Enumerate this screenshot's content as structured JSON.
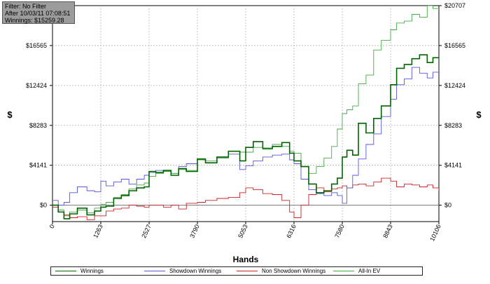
{
  "info": {
    "filter": "Filter: No Filter",
    "after": "After 10/03/11 07:08:51",
    "winnings": "Winnings: $15259.28"
  },
  "chart_data": {
    "type": "line",
    "xlabel": "Hands",
    "ylabel": "$",
    "x_ticks": [
      "0",
      "1263",
      "2527",
      "3790",
      "5053",
      "6316",
      "7580",
      "8843",
      "10106"
    ],
    "y_ticks": [
      "$0",
      "$4141",
      "$8283",
      "$12424",
      "$16565",
      "$20707"
    ],
    "xlim": [
      0,
      10106
    ],
    "ylim": [
      -1700,
      20707
    ],
    "grid": true,
    "legend_position": "bottom",
    "series": [
      {
        "name": "Winnings",
        "color": "#006400",
        "x": [
          0,
          150,
          300,
          450,
          650,
          900,
          1100,
          1263,
          1400,
          1600,
          1800,
          2000,
          2200,
          2400,
          2527,
          2700,
          2900,
          3100,
          3300,
          3500,
          3790,
          4000,
          4300,
          4600,
          4900,
          5053,
          5250,
          5500,
          5750,
          6000,
          6200,
          6316,
          6500,
          6700,
          6900,
          7100,
          7300,
          7450,
          7580,
          7700,
          7850,
          8000,
          8200,
          8400,
          8600,
          8843,
          9000,
          9200,
          9400,
          9600,
          9800,
          9950,
          10106
        ],
        "values": [
          0,
          -700,
          -1400,
          -900,
          -300,
          -1000,
          -600,
          -200,
          -100,
          700,
          1000,
          1500,
          1800,
          1900,
          3500,
          3400,
          3600,
          3100,
          3800,
          3500,
          4800,
          4400,
          5000,
          5600,
          4600,
          6000,
          6600,
          5900,
          6100,
          6500,
          5400,
          4600,
          4000,
          2200,
          1300,
          1500,
          2200,
          2800,
          5000,
          5700,
          5200,
          8500,
          7500,
          9000,
          10300,
          12500,
          14200,
          14600,
          15200,
          15600,
          14800,
          15300,
          15259
        ]
      },
      {
        "name": "Showdown Winnings",
        "color": "#5555dd",
        "x": [
          0,
          150,
          300,
          450,
          650,
          900,
          1100,
          1263,
          1400,
          1600,
          1800,
          2000,
          2200,
          2400,
          2527,
          2700,
          2900,
          3100,
          3300,
          3500,
          3790,
          4000,
          4300,
          4600,
          4900,
          5053,
          5250,
          5500,
          5750,
          6000,
          6200,
          6316,
          6500,
          6700,
          6900,
          7100,
          7300,
          7450,
          7580,
          7700,
          7850,
          8000,
          8200,
          8400,
          8600,
          8843,
          9000,
          9200,
          9400,
          9600,
          9800,
          9950,
          10106
        ],
        "values": [
          500,
          0,
          300,
          1300,
          1900,
          1500,
          1400,
          2500,
          2000,
          2400,
          2700,
          2200,
          2700,
          3100,
          3400,
          3600,
          3500,
          3300,
          4000,
          4300,
          4700,
          4400,
          4900,
          5300,
          3700,
          4100,
          4600,
          5000,
          5200,
          5300,
          4700,
          4300,
          2700,
          1600,
          1200,
          1000,
          1300,
          1000,
          200,
          1800,
          3100,
          4800,
          6300,
          7400,
          9200,
          11000,
          12500,
          13100,
          14300,
          13700,
          13200,
          13800,
          13900
        ]
      },
      {
        "name": "Non Showdown Winnings",
        "color": "#cc2222",
        "x": [
          0,
          150,
          300,
          450,
          650,
          900,
          1100,
          1263,
          1400,
          1600,
          1800,
          2000,
          2200,
          2400,
          2527,
          2700,
          2900,
          3100,
          3300,
          3500,
          3790,
          4000,
          4300,
          4600,
          4900,
          5053,
          5250,
          5500,
          5750,
          6000,
          6200,
          6316,
          6500,
          6700,
          6900,
          7100,
          7300,
          7450,
          7580,
          7700,
          7850,
          8000,
          8200,
          8400,
          8600,
          8843,
          9000,
          9200,
          9400,
          9600,
          9800,
          9950,
          10106
        ],
        "values": [
          -200,
          -700,
          -1000,
          -1300,
          -1200,
          -1500,
          -1100,
          -1100,
          -600,
          -400,
          -300,
          0,
          -100,
          -200,
          0,
          0,
          -200,
          0,
          -400,
          200,
          300,
          500,
          700,
          800,
          1300,
          1800,
          1600,
          1200,
          1100,
          500,
          -700,
          -1300,
          0,
          1100,
          1800,
          1400,
          1700,
          1800,
          2000,
          1800,
          2100,
          2200,
          2000,
          2400,
          2800,
          2500,
          1900,
          2200,
          2100,
          1900,
          2100,
          1800,
          1500
        ]
      },
      {
        "name": "All-In EV",
        "color": "#44aa44",
        "x": [
          0,
          150,
          300,
          450,
          650,
          900,
          1100,
          1263,
          1400,
          1600,
          1800,
          2000,
          2200,
          2400,
          2527,
          2700,
          2900,
          3100,
          3300,
          3500,
          3790,
          4000,
          4300,
          4600,
          4900,
          5053,
          5250,
          5500,
          5750,
          6000,
          6200,
          6316,
          6500,
          6700,
          6900,
          7100,
          7300,
          7450,
          7580,
          7700,
          7850,
          8000,
          8200,
          8400,
          8600,
          8843,
          9000,
          9200,
          9400,
          9600,
          9800,
          9950,
          10106
        ],
        "values": [
          0,
          -500,
          -1100,
          -700,
          -500,
          -800,
          -300,
          100,
          300,
          800,
          1100,
          1700,
          2100,
          2300,
          3000,
          3300,
          3500,
          3300,
          3700,
          3600,
          4700,
          4600,
          4900,
          5600,
          5500,
          5500,
          6000,
          5800,
          6300,
          6100,
          5600,
          5400,
          4000,
          3300,
          4000,
          4900,
          6100,
          7900,
          9500,
          9900,
          10300,
          12600,
          13500,
          16100,
          17100,
          18200,
          18900,
          19100,
          19800,
          19500,
          20707,
          20400,
          20300
        ]
      }
    ]
  }
}
